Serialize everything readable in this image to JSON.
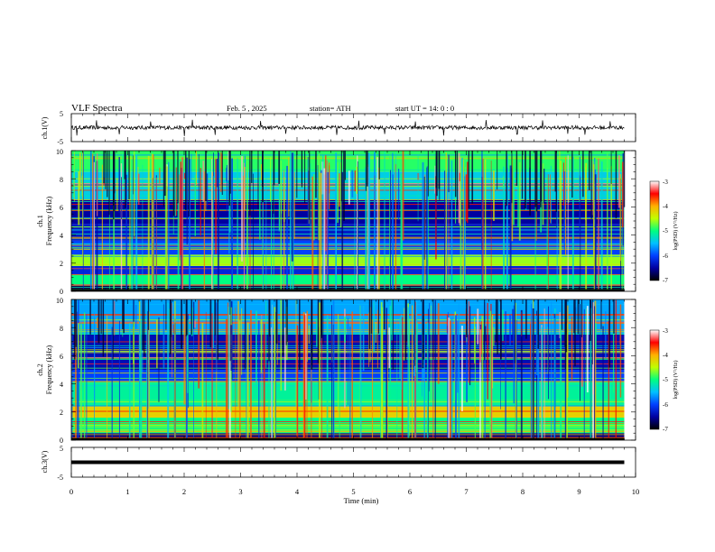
{
  "header": {
    "title": "VLF  Spectra",
    "date": "Feb. 5  , 2025",
    "station": "station= ATH",
    "start": "start  UT  =   14: 0   : 0"
  },
  "x_axis": {
    "label": "Time  (min)",
    "ticks": [
      "0",
      "1",
      "2",
      "3",
      "4",
      "5",
      "6",
      "7",
      "8",
      "9",
      "10"
    ]
  },
  "chart_data": [
    {
      "type": "line",
      "name": "ch1-voltage",
      "ylabel": "ch.1(V)",
      "ylim": [
        -5,
        5
      ],
      "yticks": [
        "5",
        "-5"
      ],
      "xlim": [
        0,
        10
      ],
      "x_end_of_data": 9.8,
      "baseline": 0,
      "noise_amplitude": 0.7,
      "spikes": [
        {
          "x": 0.1,
          "y": -2.8
        },
        {
          "x": 0.45,
          "y": 2.6
        },
        {
          "x": 0.85,
          "y": -2.4
        },
        {
          "x": 1.4,
          "y": 2.2
        },
        {
          "x": 2.0,
          "y": -3.0
        },
        {
          "x": 2.15,
          "y": 2.8
        },
        {
          "x": 2.55,
          "y": -2.6
        },
        {
          "x": 3.35,
          "y": 2.4
        },
        {
          "x": 3.8,
          "y": -2.2
        },
        {
          "x": 4.7,
          "y": -2.6
        },
        {
          "x": 5.1,
          "y": 2.5
        },
        {
          "x": 5.55,
          "y": -2.3
        },
        {
          "x": 6.1,
          "y": 2.2
        },
        {
          "x": 6.6,
          "y": -2.8
        },
        {
          "x": 7.35,
          "y": 2.7
        },
        {
          "x": 7.9,
          "y": -2.4
        },
        {
          "x": 8.35,
          "y": 2.6
        },
        {
          "x": 8.8,
          "y": -2.2
        },
        {
          "x": 9.1,
          "y": -2.5
        },
        {
          "x": 9.55,
          "y": 2.3
        }
      ]
    },
    {
      "type": "heatmap",
      "name": "ch1-spectrogram",
      "ylabel_line1": "ch.1",
      "ylabel_line2": "Frequency  (kHz)",
      "ylim": [
        0,
        10
      ],
      "xlim": [
        0,
        10
      ],
      "x_end_of_data": 9.8,
      "yticks": [
        "0",
        "2",
        "4",
        "6",
        "8",
        "10"
      ],
      "value_range": [
        -7,
        -3
      ],
      "bands": [
        {
          "from": 0.0,
          "to": 0.4,
          "value": -6.8
        },
        {
          "from": 0.4,
          "to": 1.2,
          "value": -5.0
        },
        {
          "from": 1.2,
          "to": 1.8,
          "value": -6.2
        },
        {
          "from": 1.8,
          "to": 2.6,
          "value": -4.6
        },
        {
          "from": 2.6,
          "to": 3.6,
          "value": -6.0
        },
        {
          "from": 3.6,
          "to": 4.8,
          "value": -6.3
        },
        {
          "from": 4.8,
          "to": 6.5,
          "value": -6.5
        },
        {
          "from": 6.5,
          "to": 8.5,
          "value": -5.4
        },
        {
          "from": 8.5,
          "to": 10.0,
          "value": -4.9
        }
      ],
      "colorbar": {
        "label": "log(PSD) (V²/Hz)",
        "ticks": [
          "-3",
          "-4",
          "-5",
          "-6",
          "-7"
        ]
      }
    },
    {
      "type": "heatmap",
      "name": "ch2-spectrogram",
      "ylabel_line1": "ch.2",
      "ylabel_line2": "Frequency  (kHz)",
      "ylim": [
        0,
        10
      ],
      "xlim": [
        0,
        10
      ],
      "x_end_of_data": 9.8,
      "yticks": [
        "0",
        "2",
        "4",
        "6",
        "8",
        "10"
      ],
      "value_range": [
        -7,
        -3
      ],
      "bands": [
        {
          "from": 0.0,
          "to": 0.5,
          "value": -6.6
        },
        {
          "from": 0.5,
          "to": 1.6,
          "value": -5.0
        },
        {
          "from": 1.6,
          "to": 2.4,
          "value": -4.2
        },
        {
          "from": 2.4,
          "to": 4.2,
          "value": -5.1
        },
        {
          "from": 4.2,
          "to": 5.0,
          "value": -6.0
        },
        {
          "from": 5.0,
          "to": 7.5,
          "value": -6.4
        },
        {
          "from": 7.5,
          "to": 10.0,
          "value": -5.6
        }
      ],
      "colorbar": {
        "label": "log(PSD) (V²/Hz)",
        "ticks": [
          "-3",
          "-4",
          "-5",
          "-6",
          "-7"
        ]
      }
    },
    {
      "type": "line",
      "name": "ch3-voltage",
      "ylabel": "ch.3(V)",
      "ylim": [
        -5,
        5
      ],
      "yticks": [
        "5",
        "-5"
      ],
      "xlim": [
        0,
        10
      ],
      "x_end_of_data": 9.8,
      "baseline": 0
    }
  ],
  "colors": {
    "scale": [
      "#000000",
      "#0000a0",
      "#0040ff",
      "#00c0ff",
      "#00ff80",
      "#c0ff00",
      "#ffb000",
      "#ff0000",
      "#ffffff"
    ]
  }
}
